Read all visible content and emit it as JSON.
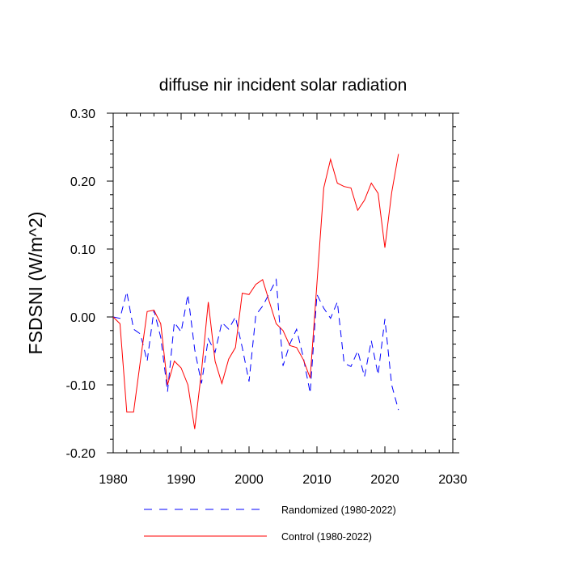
{
  "chart_data": {
    "type": "line",
    "title": "diffuse nir incident solar radiation",
    "xlabel": "",
    "ylabel": "FSDSNI  (W/m^2)",
    "xlim": [
      1980,
      2030
    ],
    "ylim": [
      -0.2,
      0.3
    ],
    "xticks": [
      1980,
      1990,
      2000,
      2010,
      2020,
      2030
    ],
    "xtick_labels": [
      "1980",
      "1990",
      "2000",
      "2010",
      "2020",
      "2030"
    ],
    "yticks": [
      -0.2,
      -0.1,
      0.0,
      0.1,
      0.2,
      0.3
    ],
    "ytick_labels": [
      "-0.20",
      "-0.10",
      "0.00",
      "0.10",
      "0.20",
      "0.30"
    ],
    "grid": false,
    "legend_position": "bottom",
    "x": [
      1980,
      1981,
      1982,
      1983,
      1984,
      1985,
      1986,
      1987,
      1988,
      1989,
      1990,
      1991,
      1992,
      1993,
      1994,
      1995,
      1996,
      1997,
      1998,
      1999,
      2000,
      2001,
      2002,
      2003,
      2004,
      2005,
      2006,
      2007,
      2008,
      2009,
      2010,
      2011,
      2012,
      2013,
      2014,
      2015,
      2016,
      2017,
      2018,
      2019,
      2020,
      2021,
      2022
    ],
    "series": [
      {
        "name": "Randomized (1980-2022)",
        "color": "#0000ff",
        "dash": "dashed",
        "values": [
          0.0,
          -0.002,
          0.037,
          -0.018,
          -0.025,
          -0.065,
          0.01,
          -0.03,
          -0.11,
          -0.008,
          -0.022,
          0.033,
          -0.048,
          -0.098,
          -0.032,
          -0.052,
          -0.008,
          -0.018,
          0.0,
          -0.045,
          -0.095,
          0.003,
          0.016,
          0.035,
          0.055,
          -0.072,
          -0.04,
          -0.018,
          -0.06,
          -0.112,
          0.033,
          0.013,
          -0.002,
          0.022,
          -0.068,
          -0.073,
          -0.05,
          -0.088,
          -0.035,
          -0.085,
          -0.003,
          -0.1,
          -0.137
        ]
      },
      {
        "name": "Control (1980-2022)",
        "color": "#ff0000",
        "dash": "solid",
        "values": [
          0.0,
          -0.01,
          -0.14,
          -0.14,
          -0.065,
          0.008,
          0.01,
          -0.01,
          -0.1,
          -0.065,
          -0.075,
          -0.1,
          -0.165,
          -0.08,
          0.022,
          -0.065,
          -0.098,
          -0.062,
          -0.045,
          0.035,
          0.033,
          0.048,
          0.055,
          0.022,
          -0.01,
          -0.02,
          -0.042,
          -0.045,
          -0.063,
          -0.09,
          0.05,
          0.19,
          0.232,
          0.197,
          0.192,
          0.19,
          0.157,
          0.172,
          0.197,
          0.182,
          0.102,
          0.183,
          0.24
        ]
      }
    ]
  }
}
